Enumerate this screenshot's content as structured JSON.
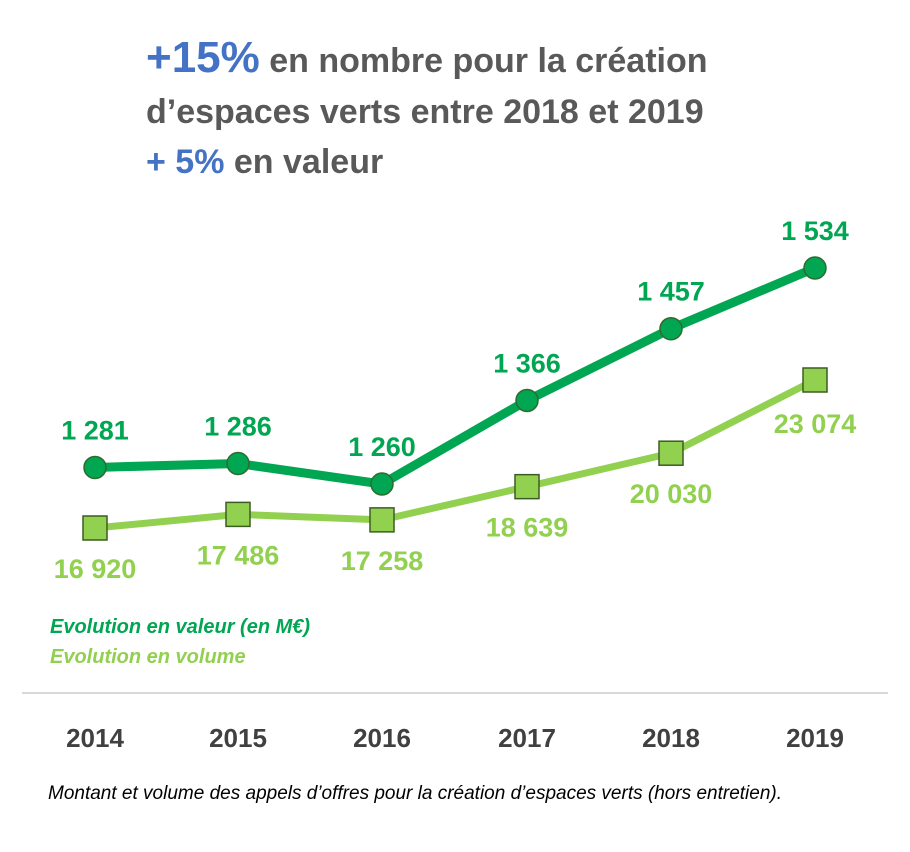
{
  "headline": {
    "line1_highlight": "+15%",
    "line1_rest": " en nombre pour la création",
    "line2": "d’espaces verts entre 2018 et 2019",
    "line3_highlight": "+ 5%",
    "line3_rest": " en valeur"
  },
  "caption": "Montant et volume des appels d’offres pour la création d’espaces verts (hors entretien).",
  "colors": {
    "headline_accent": "#4472c4",
    "headline_text": "#595959",
    "value_series": "#00a651",
    "volume_series": "#92d050",
    "axis_labels": "#404040"
  },
  "chart_data": {
    "type": "line",
    "categories": [
      "2014",
      "2015",
      "2016",
      "2017",
      "2018",
      "2019"
    ],
    "series": [
      {
        "name": "Evolution en valeur (en M€)",
        "values": [
          1281,
          1286,
          1260,
          1366,
          1457,
          1534
        ],
        "labels": [
          "1 281",
          "1 286",
          "1 260",
          "1 366",
          "1 457",
          "1 534"
        ],
        "color": "#00a651",
        "marker": "circle"
      },
      {
        "name": "Evolution en volume",
        "values": [
          16920,
          17486,
          17258,
          18639,
          20030,
          23074
        ],
        "labels": [
          "16 920",
          "17 486",
          "17 258",
          "18 639",
          "20 030",
          "23 074"
        ],
        "color": "#92d050",
        "marker": "square"
      }
    ],
    "legend": [
      "Evolution en valeur (en M€)",
      "Evolution en volume"
    ],
    "legend_position": "bottom-left",
    "grid": false
  }
}
